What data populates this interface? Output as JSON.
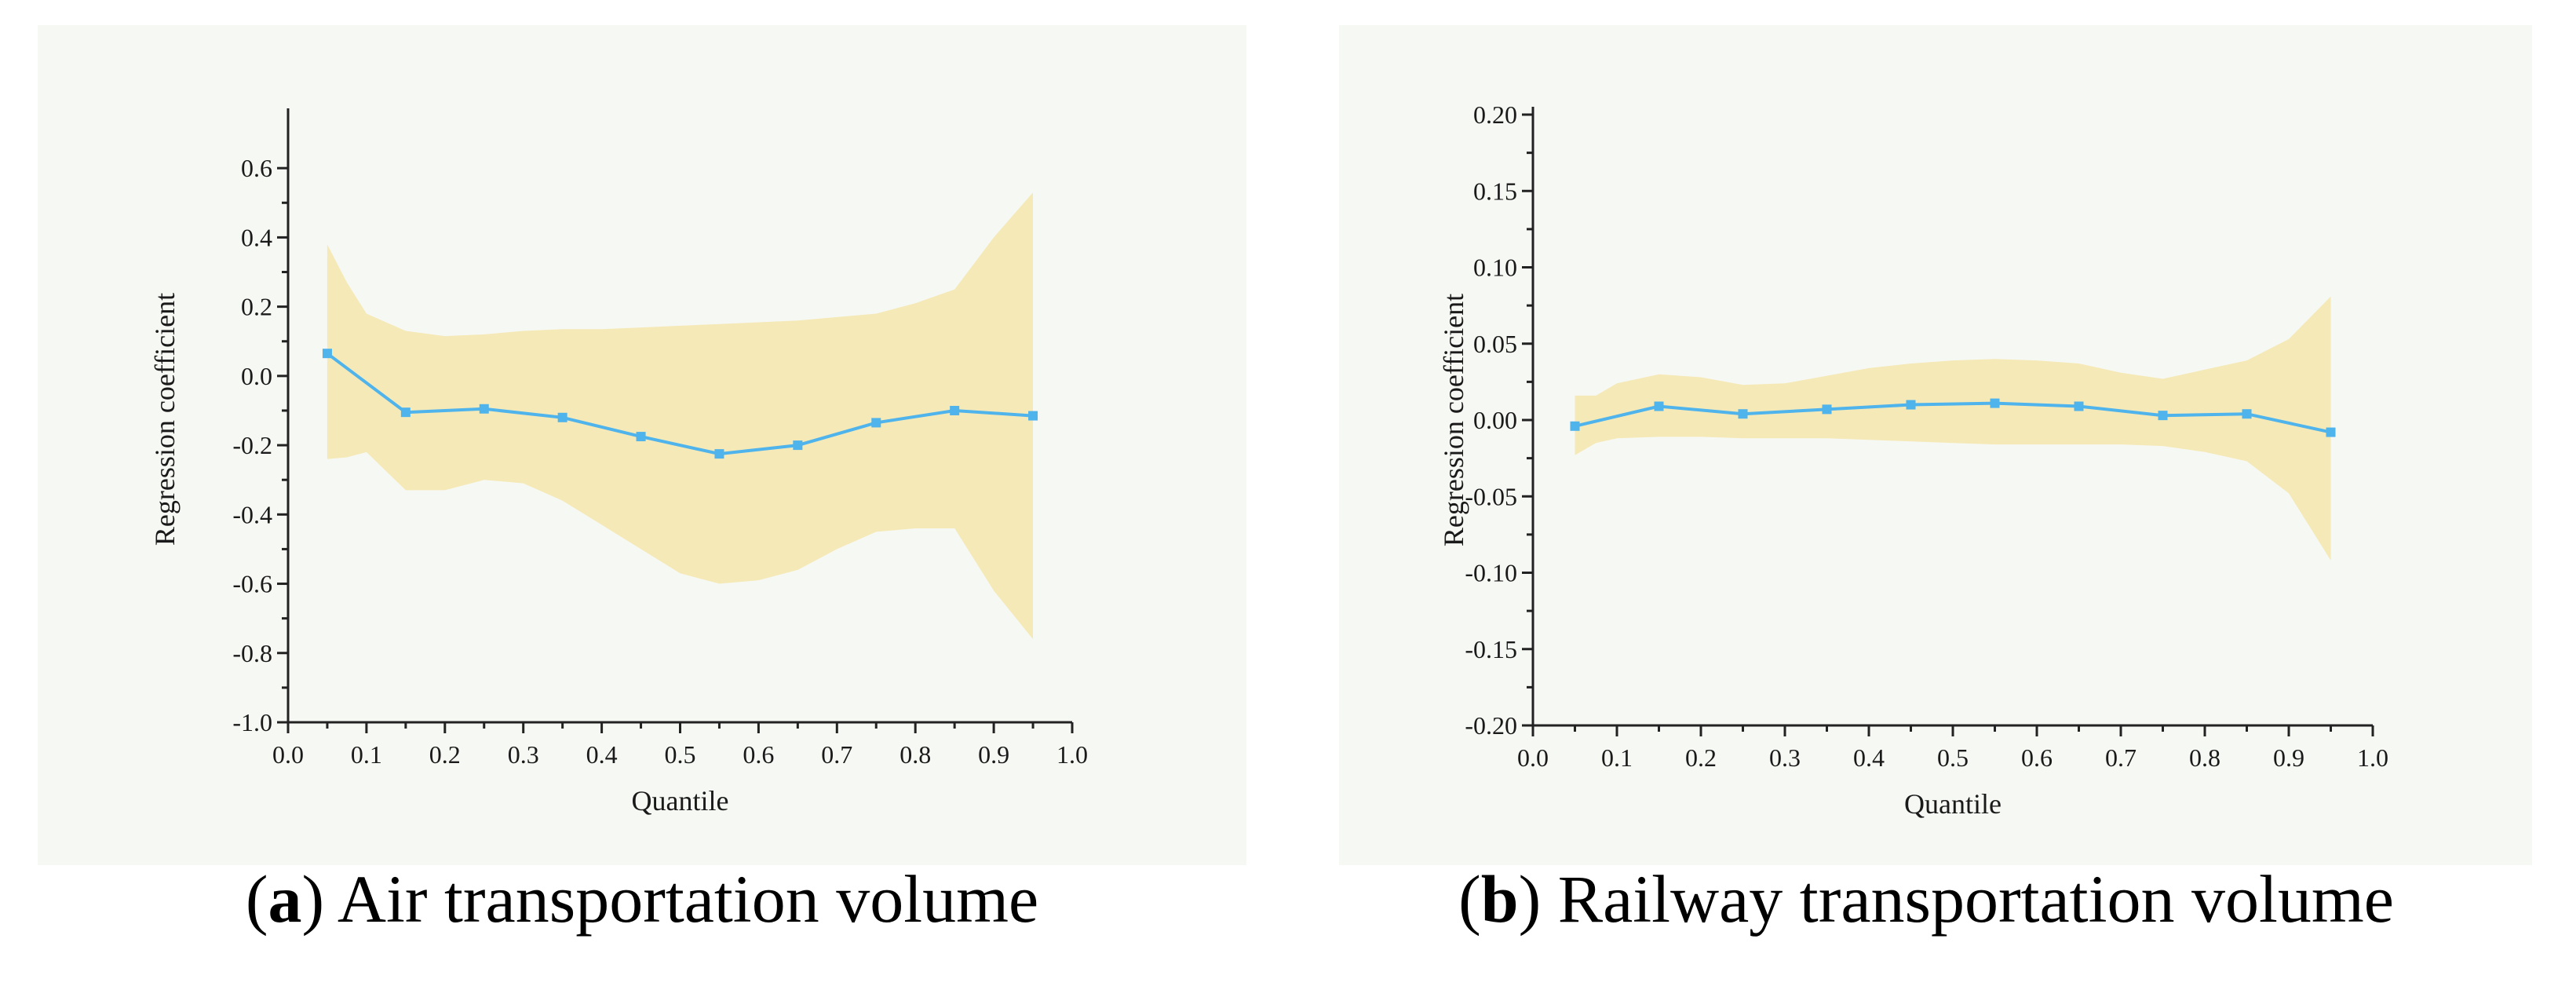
{
  "chart_data": [
    {
      "type": "line",
      "panel_label": "a",
      "caption": "Air transportation volume",
      "title": "",
      "xlabel": "Quantile",
      "ylabel": "Regression coefficient",
      "xlim": [
        0.0,
        1.0
      ],
      "ylim": [
        -1.0,
        0.75
      ],
      "xticks": [
        0.0,
        0.1,
        0.2,
        0.3,
        0.4,
        0.5,
        0.6,
        0.7,
        0.8,
        0.9,
        1.0
      ],
      "xtick_labels": [
        "0.0",
        "0.1",
        "0.2",
        "0.3",
        "0.4",
        "0.5",
        "0.6",
        "0.7",
        "0.8",
        "0.9",
        "1.0"
      ],
      "yticks": [
        -1.0,
        -0.8,
        -0.6,
        -0.4,
        -0.2,
        0.0,
        0.2,
        0.4,
        0.6
      ],
      "ytick_labels": [
        "-1.0",
        "-0.8",
        "-0.6",
        "-0.4",
        "-0.2",
        "0.0",
        "0.2",
        "0.4",
        "0.6"
      ],
      "x": [
        0.05,
        0.15,
        0.25,
        0.35,
        0.45,
        0.55,
        0.65,
        0.75,
        0.85,
        0.95
      ],
      "series": [
        {
          "name": "Coefficient",
          "values": [
            0.065,
            -0.105,
            -0.095,
            -0.12,
            -0.175,
            -0.225,
            -0.2,
            -0.135,
            -0.1,
            -0.115
          ]
        }
      ],
      "band": {
        "x": [
          0.05,
          0.075,
          0.1,
          0.15,
          0.2,
          0.25,
          0.3,
          0.35,
          0.4,
          0.45,
          0.5,
          0.55,
          0.6,
          0.65,
          0.7,
          0.75,
          0.8,
          0.85,
          0.9,
          0.95
        ],
        "upper": [
          0.38,
          0.27,
          0.18,
          0.13,
          0.115,
          0.12,
          0.13,
          0.135,
          0.135,
          0.14,
          0.145,
          0.15,
          0.155,
          0.16,
          0.17,
          0.18,
          0.21,
          0.25,
          0.4,
          0.53
        ],
        "lower": [
          -0.24,
          -0.235,
          -0.22,
          -0.33,
          -0.33,
          -0.3,
          -0.31,
          -0.36,
          -0.43,
          -0.5,
          -0.57,
          -0.6,
          -0.59,
          -0.56,
          -0.5,
          -0.45,
          -0.44,
          -0.44,
          -0.62,
          -0.76
        ]
      },
      "colors": {
        "line": "#4fb3ec",
        "band": "#f5e9b8",
        "background": "#f6f8f3"
      }
    },
    {
      "type": "line",
      "panel_label": "b",
      "caption": "Railway transportation volume",
      "title": "",
      "xlabel": "Quantile",
      "ylabel": "Regression coefficient",
      "xlim": [
        0.0,
        1.0
      ],
      "ylim": [
        -0.2,
        0.2
      ],
      "xticks": [
        0.0,
        0.1,
        0.2,
        0.3,
        0.4,
        0.5,
        0.6,
        0.7,
        0.8,
        0.9,
        1.0
      ],
      "xtick_labels": [
        "0.0",
        "0.1",
        "0.2",
        "0.3",
        "0.4",
        "0.5",
        "0.6",
        "0.7",
        "0.8",
        "0.9",
        "1.0"
      ],
      "yticks": [
        -0.2,
        -0.15,
        -0.1,
        -0.05,
        0.0,
        0.05,
        0.1,
        0.15,
        0.2
      ],
      "ytick_labels": [
        "-0.20",
        "-0.15",
        "-0.10",
        "-0.05",
        "0.00",
        "0.05",
        "0.10",
        "0.15",
        "0.20"
      ],
      "x": [
        0.05,
        0.15,
        0.25,
        0.35,
        0.45,
        0.55,
        0.65,
        0.75,
        0.85,
        0.95
      ],
      "series": [
        {
          "name": "Coefficient",
          "values": [
            -0.004,
            0.009,
            0.004,
            0.007,
            0.01,
            0.011,
            0.009,
            0.003,
            0.004,
            -0.008
          ]
        }
      ],
      "band": {
        "x": [
          0.05,
          0.075,
          0.1,
          0.15,
          0.2,
          0.25,
          0.3,
          0.35,
          0.4,
          0.45,
          0.5,
          0.55,
          0.6,
          0.65,
          0.7,
          0.75,
          0.8,
          0.85,
          0.9,
          0.95
        ],
        "upper": [
          0.016,
          0.016,
          0.024,
          0.03,
          0.028,
          0.023,
          0.024,
          0.029,
          0.034,
          0.037,
          0.039,
          0.04,
          0.039,
          0.037,
          0.031,
          0.027,
          0.033,
          0.039,
          0.053,
          0.081
        ],
        "lower": [
          -0.023,
          -0.015,
          -0.012,
          -0.011,
          -0.011,
          -0.012,
          -0.012,
          -0.012,
          -0.013,
          -0.014,
          -0.015,
          -0.016,
          -0.016,
          -0.016,
          -0.016,
          -0.017,
          -0.021,
          -0.027,
          -0.048,
          -0.092
        ]
      },
      "colors": {
        "line": "#4fb3ec",
        "band": "#f5e9b8",
        "background": "#f6f8f3"
      }
    }
  ]
}
